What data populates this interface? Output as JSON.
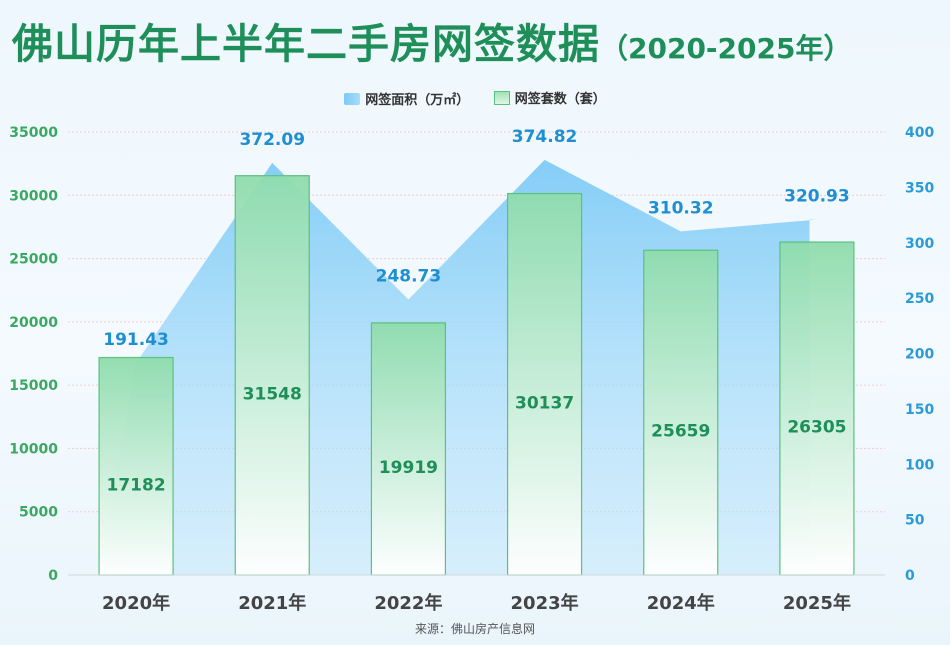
{
  "title": {
    "main": "佛山历年上半年二手房网签数据",
    "sub": "（2020-2025年）"
  },
  "legend": {
    "area_label": "网签面积（万㎡）",
    "bar_label": "网签套数（套）"
  },
  "source": "来源：佛山房产信息网",
  "colors": {
    "title": "#1f8f5a",
    "area": "#8fd2f7",
    "area_label": "#1e8fd0",
    "bar_fill_top": "#8fdcad",
    "bar_fill_bottom": "#ffffff",
    "bar_stroke": "#5ac17f",
    "bar_label": "#1f8f5a",
    "left_axis_text": "#3aa860",
    "right_axis_text": "#2a9bd8"
  },
  "chart_data": {
    "type": "bar",
    "categories": [
      "2020年",
      "2021年",
      "2022年",
      "2023年",
      "2024年",
      "2025年"
    ],
    "series": [
      {
        "name": "网签套数（套）",
        "type": "bar",
        "axis": "left",
        "values": [
          17182,
          31548,
          19919,
          30137,
          25659,
          26305
        ]
      },
      {
        "name": "网签面积（万㎡）",
        "type": "area",
        "axis": "right",
        "values": [
          191.43,
          372.09,
          248.73,
          374.82,
          310.32,
          320.93
        ]
      }
    ],
    "left_axis": {
      "min": 0,
      "max": 35000,
      "ticks": [
        0,
        5000,
        10000,
        15000,
        20000,
        25000,
        30000,
        35000
      ]
    },
    "right_axis": {
      "min": 0,
      "max": 400,
      "ticks": [
        0,
        50,
        100,
        150,
        200,
        250,
        300,
        350,
        400
      ]
    },
    "grid": true,
    "legend_position": "top-center"
  }
}
